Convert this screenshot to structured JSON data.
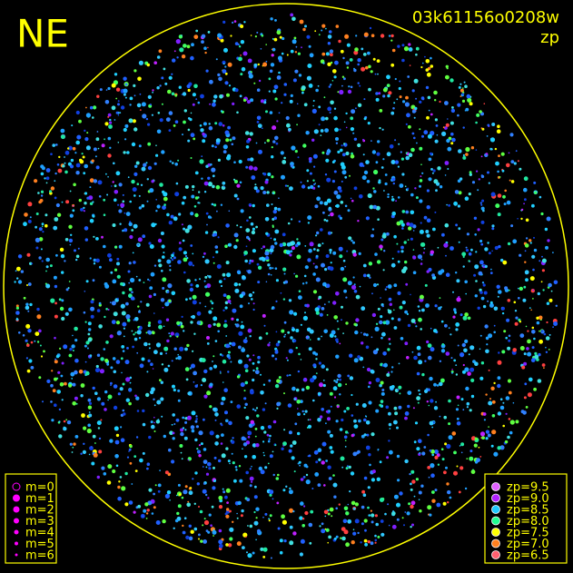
{
  "title": "NE",
  "image_id": "03k61156o0208w",
  "color_key": "zp",
  "magnitude_legend": {
    "color": "#ff00ff",
    "items": [
      "m=0",
      "m=1",
      "m=2",
      "m=3",
      "m=4",
      "m=5",
      "m=6"
    ]
  },
  "zp_legend": [
    {
      "label": "zp=9.5",
      "color": "#e060ff"
    },
    {
      "label": "zp=9.0",
      "color": "#b020ff"
    },
    {
      "label": "zp=8.5",
      "color": "#20c8ff"
    },
    {
      "label": "zp=8.0",
      "color": "#20ff90"
    },
    {
      "label": "zp=7.5",
      "color": "#ffff00"
    },
    {
      "label": "zp=7.0",
      "color": "#ff8020"
    },
    {
      "label": "zp=6.5",
      "color": "#ff6070"
    }
  ]
}
